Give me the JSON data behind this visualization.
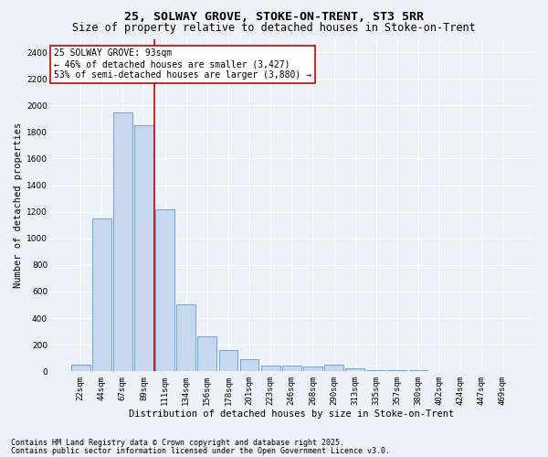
{
  "title1": "25, SOLWAY GROVE, STOKE-ON-TRENT, ST3 5RR",
  "title2": "Size of property relative to detached houses in Stoke-on-Trent",
  "xlabel": "Distribution of detached houses by size in Stoke-on-Trent",
  "ylabel": "Number of detached properties",
  "categories": [
    "22sqm",
    "44sqm",
    "67sqm",
    "89sqm",
    "111sqm",
    "134sqm",
    "156sqm",
    "178sqm",
    "201sqm",
    "223sqm",
    "246sqm",
    "268sqm",
    "290sqm",
    "313sqm",
    "335sqm",
    "357sqm",
    "380sqm",
    "402sqm",
    "424sqm",
    "447sqm",
    "469sqm"
  ],
  "values": [
    50,
    1150,
    1950,
    1850,
    1220,
    500,
    260,
    160,
    90,
    40,
    40,
    35,
    50,
    20,
    10,
    5,
    5,
    2,
    2,
    1,
    1
  ],
  "bar_color": "#c5d8f0",
  "bar_edge_color": "#5b9bd5",
  "vline_x": 3.5,
  "vline_color": "#cc0000",
  "annotation_text": "25 SOLWAY GROVE: 93sqm\n← 46% of detached houses are smaller (3,427)\n53% of semi-detached houses are larger (3,880) →",
  "annotation_box_color": "#ffffff",
  "annotation_box_edge": "#cc0000",
  "ylim": [
    0,
    2500
  ],
  "yticks": [
    0,
    200,
    400,
    600,
    800,
    1000,
    1200,
    1400,
    1600,
    1800,
    2000,
    2200,
    2400
  ],
  "footer1": "Contains HM Land Registry data © Crown copyright and database right 2025.",
  "footer2": "Contains public sector information licensed under the Open Government Licence v3.0.",
  "bg_color": "#edf2f9",
  "plot_bg_color": "#edf2f9",
  "grid_color": "#ffffff",
  "title_fontsize": 9.5,
  "subtitle_fontsize": 8.5,
  "axis_label_fontsize": 7.5,
  "tick_fontsize": 6.5,
  "footer_fontsize": 6,
  "annot_fontsize": 7
}
